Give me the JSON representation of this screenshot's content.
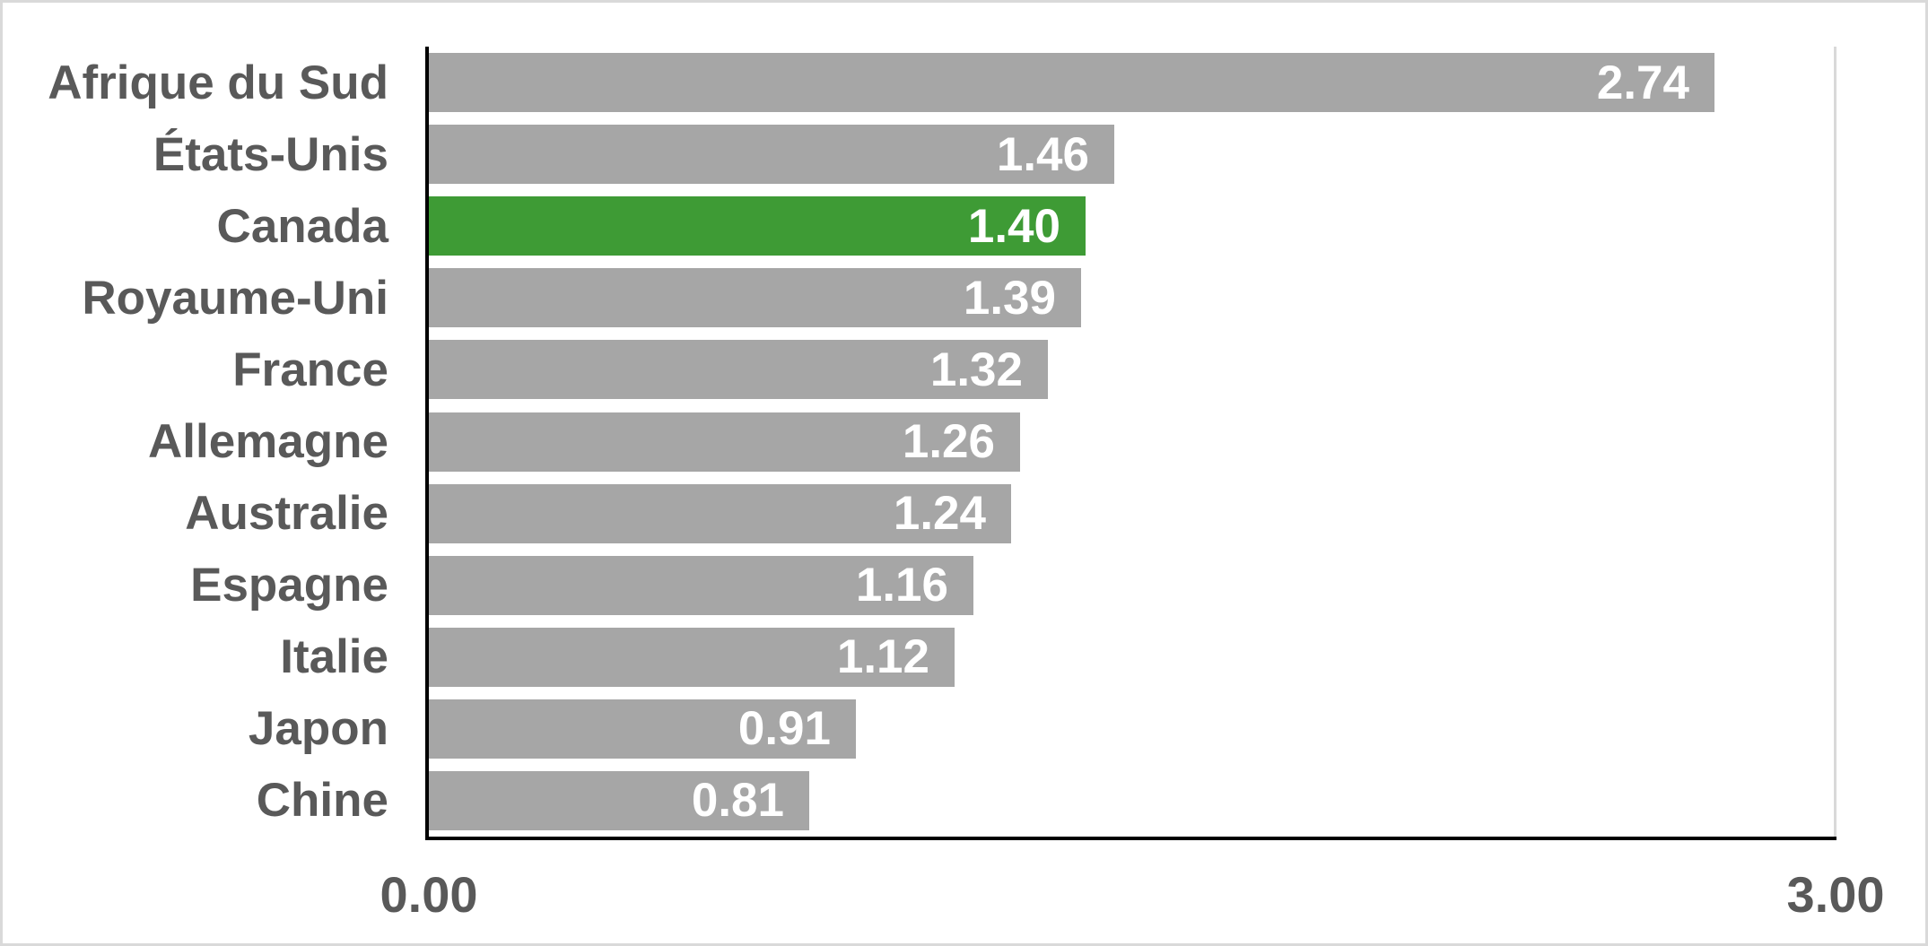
{
  "chart_data": {
    "type": "bar",
    "orientation": "horizontal",
    "title": "",
    "xlabel": "",
    "ylabel": "",
    "categories": [
      "Afrique du Sud",
      "États-Unis",
      "Canada",
      "Royaume-Uni",
      "France",
      "Allemagne",
      "Australie",
      "Espagne",
      "Italie",
      "Japon",
      "Chine"
    ],
    "values": [
      2.74,
      1.46,
      1.4,
      1.39,
      1.32,
      1.26,
      1.24,
      1.16,
      1.12,
      0.91,
      0.81
    ],
    "value_labels": [
      "2.74",
      "1.46",
      "1.40",
      "1.39",
      "1.32",
      "1.26",
      "1.24",
      "1.16",
      "1.12",
      "0.91",
      "0.81"
    ],
    "highlight_index": 2,
    "highlighted_category": "Canada",
    "xlim": [
      0.0,
      3.0
    ],
    "x_ticks": [
      "0.00",
      "3.00"
    ],
    "grid": "single vertical gridline at x=3.00, horizontal grid off",
    "legend": "none",
    "colors": {
      "bar_default": "#a6a6a6",
      "bar_highlight": "#3e9b35",
      "category_label_text": "#595959",
      "tick_label_text": "#595959",
      "value_label_text": "#ffffff",
      "axis_line": "#000000",
      "gridline": "#d9d9d9",
      "background": "#ffffff",
      "frame_border": "#d9d9d9"
    }
  }
}
